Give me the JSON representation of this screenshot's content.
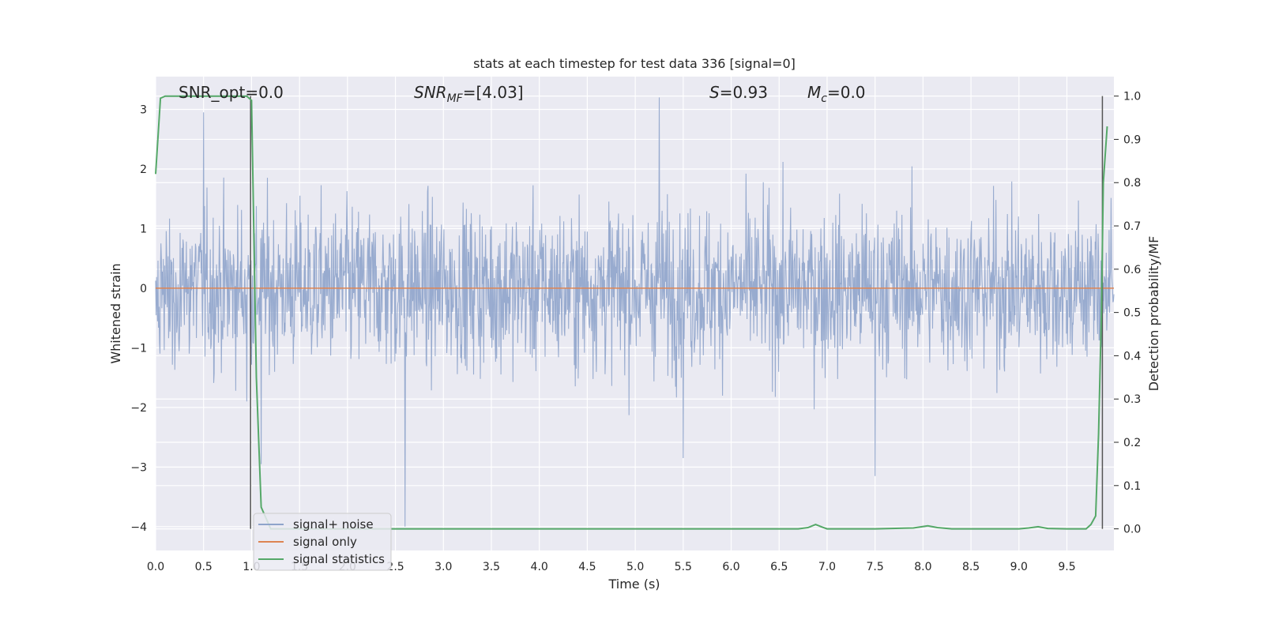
{
  "chart_data": {
    "type": "line",
    "title": "stats at each timestep for test data 336 [signal=0]",
    "xlabel": "Time (s)",
    "ylabel": "Whitened strain",
    "ylabel_right": "Detection probability/MF",
    "xlim": [
      0.0,
      9.99
    ],
    "ylim": [
      -4.4,
      3.55
    ],
    "ylim_right": [
      -0.05,
      1.045
    ],
    "xticks": [
      "0.0",
      "0.5",
      "1.0",
      "1.5",
      "2.0",
      "2.5",
      "3.0",
      "3.5",
      "4.0",
      "4.5",
      "5.0",
      "5.5",
      "6.0",
      "6.5",
      "7.0",
      "7.5",
      "8.0",
      "8.5",
      "9.0",
      "9.5"
    ],
    "yticks": [
      "3",
      "2",
      "1",
      "0",
      "−1",
      "−2",
      "−3",
      "−4"
    ],
    "yticks_right": [
      "1.0",
      "0.9",
      "0.8",
      "0.7",
      "0.6",
      "0.5",
      "0.4",
      "0.3",
      "0.2",
      "0.1",
      "0.0"
    ],
    "grid": true,
    "background": "#eaeaf2",
    "annotations": {
      "snr_opt": "SNR_opt=0.0",
      "snr_mf_main": "SNR",
      "snr_mf_sub": "MF",
      "snr_mf_value": "=[4.03]",
      "s_symbol": "S",
      "s_value": "=0.93",
      "mc_symbol": "M",
      "mc_sub": "c",
      "mc_value": "=0.0"
    },
    "legend": {
      "placement": "lower-left",
      "entries": [
        {
          "label": "signal+ noise",
          "color": "#8fa4cb"
        },
        {
          "label": "signal only",
          "color": "#dd8452"
        },
        {
          "label": "signal statistics",
          "color": "#55a868"
        }
      ]
    },
    "series": [
      {
        "name": "signal+ noise",
        "color": "#8fa4cb",
        "kind": "noise",
        "sampling_hz": 200,
        "typical_envelope": [
          -1.75,
          1.75
        ],
        "peak_values": [
          {
            "x": 0.5,
            "y": 2.95
          },
          {
            "x": 0.95,
            "y": -1.9
          },
          {
            "x": 1.1,
            "y": -2.95
          },
          {
            "x": 2.6,
            "y": -4.0
          },
          {
            "x": 5.25,
            "y": 3.2
          },
          {
            "x": 5.5,
            "y": -2.85
          },
          {
            "x": 7.5,
            "y": -3.15
          }
        ]
      },
      {
        "name": "signal only",
        "color": "#dd8452",
        "x": [
          0.0,
          9.99
        ],
        "y": [
          0.0,
          0.0
        ]
      },
      {
        "name": "signal statistics",
        "color": "#55a868",
        "axis": "right",
        "x": [
          0.0,
          0.05,
          0.1,
          0.2,
          0.4,
          0.6,
          0.8,
          0.95,
          1.0,
          1.05,
          1.1,
          1.2,
          1.5,
          2.0,
          3.0,
          4.0,
          5.0,
          6.0,
          6.7,
          6.8,
          6.88,
          6.95,
          7.0,
          7.5,
          7.9,
          8.05,
          8.15,
          8.3,
          9.0,
          9.1,
          9.2,
          9.3,
          9.5,
          9.7,
          9.75,
          9.8,
          9.83,
          9.86,
          9.88,
          9.92
        ],
        "y": [
          0.82,
          0.995,
          1.0,
          1.0,
          1.0,
          1.0,
          1.0,
          1.0,
          0.99,
          0.35,
          0.05,
          0.0,
          0.0,
          0.0,
          0.0,
          0.0,
          0.0,
          0.0,
          0.0,
          0.003,
          0.01,
          0.004,
          0.0,
          0.0,
          0.002,
          0.007,
          0.003,
          0.0,
          0.0,
          0.002,
          0.005,
          0.001,
          0.0,
          0.0,
          0.01,
          0.03,
          0.22,
          0.5,
          0.8,
          0.93
        ]
      }
    ],
    "vertical_markers": [
      {
        "x": 0.99,
        "color": "#555555",
        "y_right": [
          0.0,
          1.0
        ]
      },
      {
        "x": 9.87,
        "color": "#555555",
        "y_right": [
          0.0,
          1.0
        ]
      }
    ]
  }
}
